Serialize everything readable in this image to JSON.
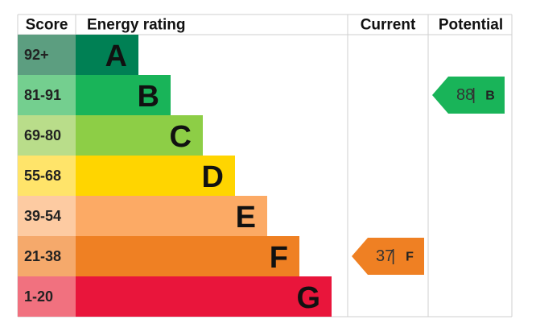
{
  "header": {
    "score": "Score",
    "rating": "Energy rating",
    "current": "Current",
    "potential": "Potential"
  },
  "bands": [
    {
      "score": "92+",
      "letter": "A",
      "color": "#008054",
      "score_color": "#5c9e80"
    },
    {
      "score": "81-91",
      "letter": "B",
      "color": "#19b459",
      "score_color": "#74cf8f"
    },
    {
      "score": "69-80",
      "letter": "C",
      "color": "#8dce46",
      "score_color": "#b9dd8a"
    },
    {
      "score": "55-68",
      "letter": "D",
      "color": "#ffd500",
      "score_color": "#ffe46a"
    },
    {
      "score": "39-54",
      "letter": "E",
      "color": "#fcaa65",
      "score_color": "#fdcba2"
    },
    {
      "score": "21-38",
      "letter": "F",
      "color": "#ef8023",
      "score_color": "#f5a96b"
    },
    {
      "score": "1-20",
      "letter": "G",
      "color": "#e9153b",
      "score_color": "#f1717f"
    }
  ],
  "current": {
    "value": 37,
    "separator": "|",
    "letter": "F"
  },
  "potential": {
    "value": 88,
    "separator": "|",
    "letter": "B"
  }
}
